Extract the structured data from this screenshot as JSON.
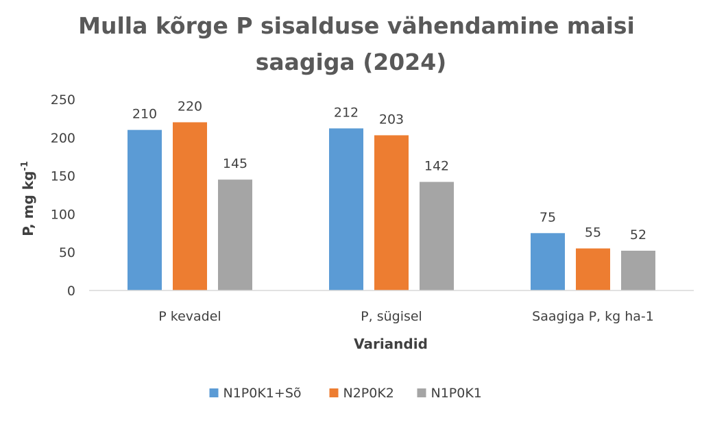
{
  "chart_data": {
    "type": "bar",
    "title_line1": "Mulla kõrge P sisalduse  vähendamine maisi",
    "title_line2": "saagiga (2024)",
    "xlabel": "Variandid",
    "ylabel_main": "P, mg kg",
    "ylabel_sup": "-1",
    "ylim": [
      0,
      250
    ],
    "yticks": [
      0,
      50,
      100,
      150,
      200,
      250
    ],
    "grid": false,
    "legend_position": "bottom",
    "categories": [
      "P kevadel",
      "P, sügisel",
      "Saagiga P, kg ha-1"
    ],
    "series": [
      {
        "name": "N1P0K1+Sõ",
        "color": "#5b9bd5",
        "values": [
          210,
          212,
          75
        ]
      },
      {
        "name": "N2P0K2",
        "color": "#ed7d31",
        "values": [
          220,
          203,
          55
        ]
      },
      {
        "name": "N1P0K1",
        "color": "#a5a5a5",
        "values": [
          145,
          142,
          52
        ]
      }
    ]
  }
}
